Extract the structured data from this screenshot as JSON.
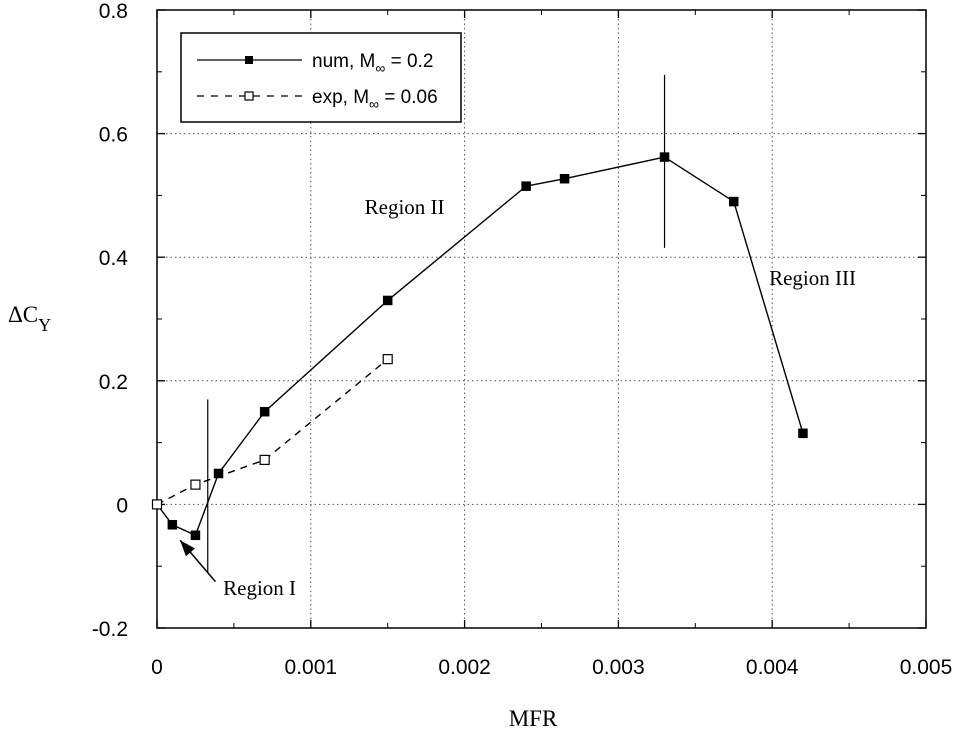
{
  "chart_data": {
    "type": "line",
    "xlabel": "MFR",
    "ylabel": "ΔC",
    "ylabel_sub": "Y",
    "xlim": [
      0,
      0.005
    ],
    "ylim": [
      -0.2,
      0.8
    ],
    "grid": true,
    "legend_position": "top-left",
    "x_tick_labels": [
      "0",
      "0.001",
      "0.002",
      "0.003",
      "0.004",
      "0.005"
    ],
    "x_tick_values": [
      0,
      0.001,
      0.002,
      0.003,
      0.004,
      0.005
    ],
    "y_tick_labels": [
      "-0.2",
      "0",
      "0.2",
      "0.4",
      "0.6",
      "0.8"
    ],
    "y_tick_values": [
      -0.2,
      0,
      0.2,
      0.4,
      0.6,
      0.8
    ],
    "series": [
      {
        "name": "num, M∞ = 0.2",
        "legend_main": "num, M",
        "legend_sub": "∞",
        "legend_tail": " = 0.2",
        "style": "solid",
        "marker": "filled-square",
        "x": [
          0.0,
          0.0001,
          0.00025,
          0.0004,
          0.0007,
          0.0015,
          0.0024,
          0.00265,
          0.0033,
          0.00375,
          0.0042
        ],
        "y": [
          0.0,
          -0.033,
          -0.05,
          0.05,
          0.15,
          0.33,
          0.515,
          0.527,
          0.562,
          0.49,
          0.115
        ]
      },
      {
        "name": "exp, M∞ = 0.06",
        "legend_main": "exp, M",
        "legend_sub": "∞",
        "legend_tail": " = 0.06",
        "style": "dashed",
        "marker": "open-square",
        "x": [
          0.0,
          0.00025,
          0.0007,
          0.0015
        ],
        "y": [
          0.0,
          0.032,
          0.072,
          0.235
        ]
      }
    ],
    "region_dividers": [
      {
        "x": 0.00033,
        "y_from": -0.11,
        "y_to": 0.17
      },
      {
        "x": 0.0033,
        "y_from": 0.415,
        "y_to": 0.695
      }
    ],
    "annotations": [
      {
        "text": "Region I",
        "x": 0.00043,
        "y": -0.147
      },
      {
        "text": "Region II",
        "x": 0.00135,
        "y": 0.47
      },
      {
        "text": "Region III",
        "x": 0.00398,
        "y": 0.355
      }
    ],
    "arrow": {
      "from": [
        0.00038,
        -0.125
      ],
      "to": [
        0.00015,
        -0.058
      ]
    }
  }
}
